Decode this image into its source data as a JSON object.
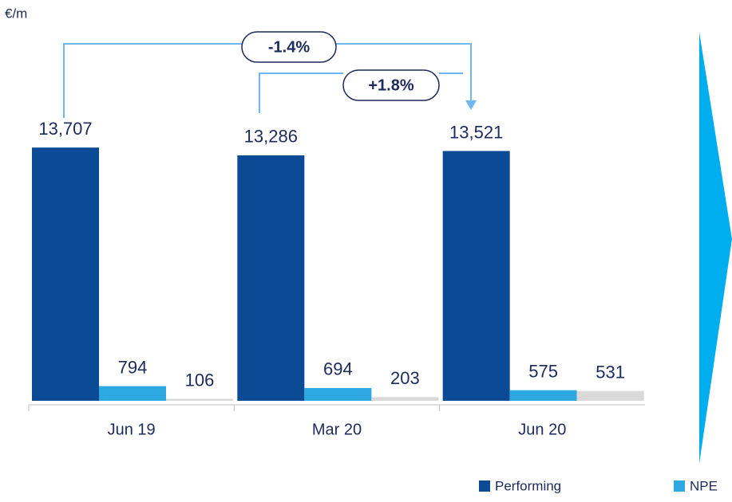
{
  "chart_data": {
    "type": "bar",
    "unit_label": "€/m",
    "annotations": [
      "-1.4%",
      "+1.8%"
    ],
    "categories": [
      "Jun 19",
      "Mar 20",
      "Jun 20"
    ],
    "series": [
      {
        "name": "Performing",
        "color": "#0b4a94",
        "values": [
          13707,
          13286,
          13521
        ],
        "value_labels": [
          "13,707",
          "13,286",
          "13,521"
        ]
      },
      {
        "name": "NPE",
        "color": "#2ea8e0",
        "values": [
          794,
          694,
          575
        ]
      },
      {
        "color": "#d9d9d9",
        "values": [
          106,
          203,
          531
        ]
      }
    ],
    "ylim": [
      0,
      16000
    ]
  }
}
